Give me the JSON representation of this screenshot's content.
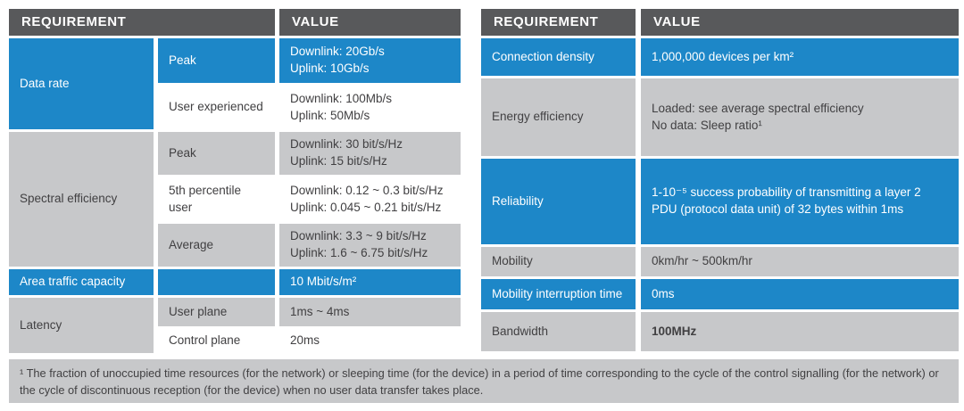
{
  "colors": {
    "accent_blue": "#1d87c8",
    "header_gray": "#58595b",
    "row_gray": "#c7c8ca",
    "text_dark": "#414042",
    "text_light": "#ffffff"
  },
  "left_table": {
    "header": {
      "requirement_label": "REQUIREMENT",
      "value_label": "VALUE"
    },
    "groups": [
      {
        "requirement": "Data rate",
        "rows": [
          {
            "sub": "Peak",
            "value": "Downlink: 20Gb/s\nUplink: 10Gb/s"
          },
          {
            "sub": "User experienced",
            "value": "Downlink: 100Mb/s\nUplink: 50Mb/s"
          }
        ]
      },
      {
        "requirement": "Spectral efficiency",
        "rows": [
          {
            "sub": "Peak",
            "value": "Downlink: 30 bit/s/Hz\nUplink: 15 bit/s/Hz"
          },
          {
            "sub": "5th percentile user",
            "value": "Downlink: 0.12 ~ 0.3 bit/s/Hz\nUplink: 0.045 ~ 0.21 bit/s/Hz"
          },
          {
            "sub": "Average",
            "value": "Downlink: 3.3 ~ 9 bit/s/Hz\nUplink: 1.6 ~ 6.75 bit/s/Hz"
          }
        ]
      },
      {
        "requirement": "Area traffic capacity",
        "rows": [
          {
            "sub": "",
            "value": "10 Mbit/s/m²"
          }
        ]
      },
      {
        "requirement": "Latency",
        "rows": [
          {
            "sub": "User plane",
            "value": "1ms ~ 4ms"
          },
          {
            "sub": "Control plane",
            "value": "20ms"
          }
        ]
      }
    ]
  },
  "right_table": {
    "header": {
      "requirement_label": "REQUIREMENT",
      "value_label": "VALUE"
    },
    "rows": [
      {
        "requirement": "Connection density",
        "value": "1,000,000 devices per km²"
      },
      {
        "requirement": "Energy efficiency",
        "value": "Loaded: see average spectral efficiency\nNo data: Sleep ratio¹"
      },
      {
        "requirement": "Reliability",
        "value": "1-10⁻⁵ success probability of transmitting a layer 2\nPDU (protocol data unit) of 32 bytes within 1ms"
      },
      {
        "requirement": "Mobility",
        "value": "0km/hr ~ 500km/hr"
      },
      {
        "requirement": "Mobility interruption time",
        "value": "0ms"
      },
      {
        "requirement": "Bandwidth",
        "value": "100MHz"
      }
    ]
  },
  "footnote": "¹ The fraction of unoccupied time resources (for the network) or sleeping time (for the device) in a period of time corresponding to the cycle of the control signalling (for the network) or the cycle of discontinuous reception (for the device) when no user data transfer takes place."
}
